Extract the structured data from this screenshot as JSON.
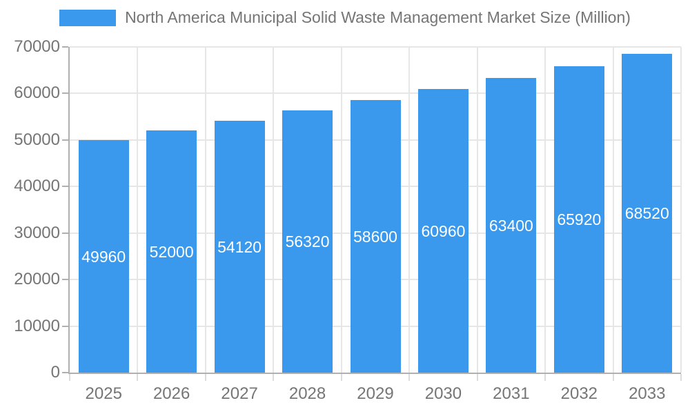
{
  "chart_data": {
    "type": "bar",
    "title": "North America Municipal Solid Waste Management Market Size (Million)",
    "categories": [
      "2025",
      "2026",
      "2027",
      "2028",
      "2029",
      "2030",
      "2031",
      "2032",
      "2033"
    ],
    "values": [
      49960,
      52000,
      54120,
      56320,
      58600,
      60960,
      63400,
      65920,
      68520
    ],
    "bar_labels": [
      "49960",
      "52000",
      "54120",
      "56320",
      "58600",
      "60960",
      "63400",
      "65920",
      "68520"
    ],
    "xlabel": "",
    "ylabel": "",
    "ylim": [
      0,
      70000
    ],
    "yticks": [
      0,
      10000,
      20000,
      30000,
      40000,
      50000,
      60000,
      70000
    ],
    "ytick_labels": [
      "0",
      "10000",
      "20000",
      "30000",
      "40000",
      "50000",
      "60000",
      "70000"
    ],
    "grid": true,
    "legend_position": "top",
    "colors": {
      "bar": "#3A99EC",
      "bar_label": "#FFFFFF",
      "axis_line": "#B0B0B0",
      "gridline": "#E6E6E6",
      "boundary_tick": "#DCDCDC",
      "tick_text": "#757575",
      "title_text": "#757575",
      "background": "#FFFFFF"
    }
  }
}
